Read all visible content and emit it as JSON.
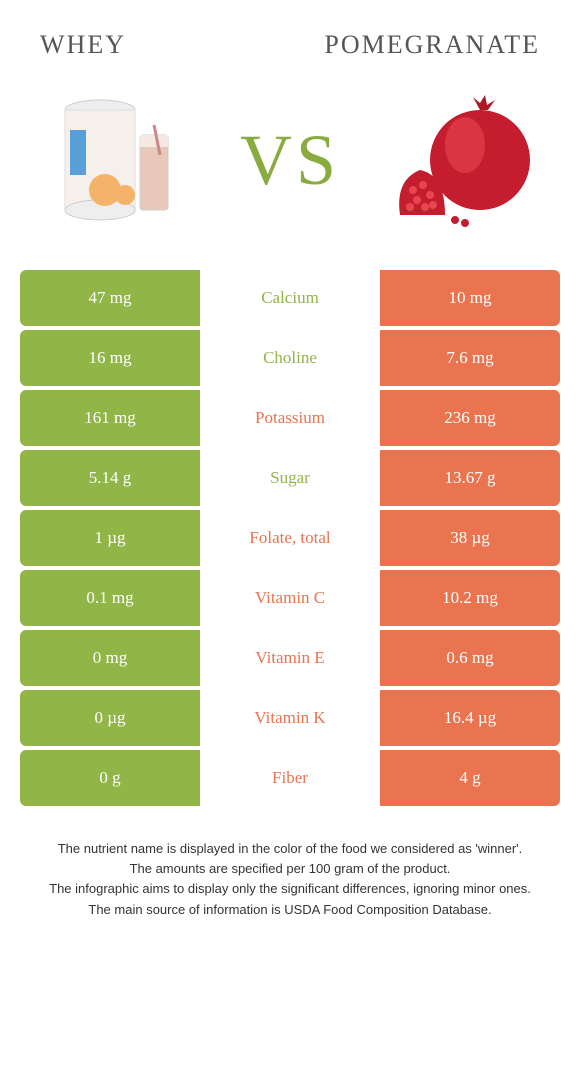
{
  "colors": {
    "green": "#92b548",
    "orange": "#e9744f",
    "text_dark": "#555555",
    "background": "#ffffff"
  },
  "header": {
    "left": "WHEY",
    "right": "POMEGRANATE"
  },
  "vs_label": "VS",
  "rows": [
    {
      "nutrient": "Calcium",
      "left": "47 mg",
      "right": "10 mg",
      "winner": "left"
    },
    {
      "nutrient": "Choline",
      "left": "16 mg",
      "right": "7.6 mg",
      "winner": "left"
    },
    {
      "nutrient": "Potassium",
      "left": "161 mg",
      "right": "236 mg",
      "winner": "right"
    },
    {
      "nutrient": "Sugar",
      "left": "5.14 g",
      "right": "13.67 g",
      "winner": "left"
    },
    {
      "nutrient": "Folate, total",
      "left": "1 µg",
      "right": "38 µg",
      "winner": "right"
    },
    {
      "nutrient": "Vitamin C",
      "left": "0.1 mg",
      "right": "10.2 mg",
      "winner": "right"
    },
    {
      "nutrient": "Vitamin E",
      "left": "0 mg",
      "right": "0.6 mg",
      "winner": "right"
    },
    {
      "nutrient": "Vitamin K",
      "left": "0 µg",
      "right": "16.4 µg",
      "winner": "right"
    },
    {
      "nutrient": "Fiber",
      "left": "0 g",
      "right": "4 g",
      "winner": "right"
    }
  ],
  "footer": [
    "The nutrient name is displayed in the color of the food we considered as 'winner'.",
    "The amounts are specified per 100 gram of the product.",
    "The infographic aims to display only the significant differences, ignoring minor ones.",
    "The main source of information is USDA Food Composition Database."
  ]
}
